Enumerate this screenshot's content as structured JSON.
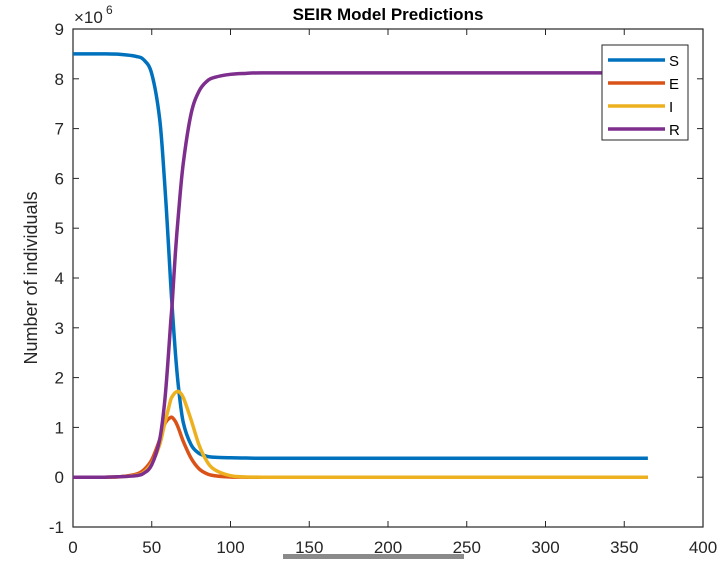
{
  "chart_data": {
    "type": "line",
    "title": "SEIR Model Predictions",
    "xlabel": "",
    "ylabel": "Number of individuals",
    "y_exponent_label": "×10^6",
    "y_multiplier": 1000000,
    "xlim": [
      0,
      400
    ],
    "ylim": [
      -1,
      9
    ],
    "xticks": [
      0,
      50,
      100,
      150,
      200,
      250,
      300,
      350,
      400
    ],
    "yticks": [
      -1,
      0,
      1,
      2,
      3,
      4,
      5,
      6,
      7,
      8,
      9
    ],
    "grid": false,
    "legend_position": "northeast",
    "x": [
      0,
      20,
      30,
      40,
      45,
      50,
      55,
      58,
      60,
      62,
      63,
      65,
      67,
      70,
      75,
      80,
      85,
      90,
      100,
      110,
      120,
      150,
      200,
      250,
      300,
      365
    ],
    "series": [
      {
        "name": "S",
        "color": "#0072BD",
        "values": [
          8.5,
          8.5,
          8.49,
          8.45,
          8.38,
          8.1,
          7.2,
          6.0,
          5.0,
          3.9,
          3.4,
          2.5,
          1.8,
          1.1,
          0.65,
          0.48,
          0.42,
          0.4,
          0.39,
          0.385,
          0.38,
          0.38,
          0.38,
          0.38,
          0.38,
          0.38
        ]
      },
      {
        "name": "E",
        "color": "#D95319",
        "values": [
          0,
          0.0,
          0.01,
          0.06,
          0.15,
          0.35,
          0.75,
          1.05,
          1.15,
          1.2,
          1.2,
          1.12,
          0.98,
          0.72,
          0.38,
          0.17,
          0.07,
          0.03,
          0.005,
          0,
          0,
          0,
          0,
          0,
          0,
          0
        ]
      },
      {
        "name": "I",
        "color": "#EDB120",
        "values": [
          0,
          0.0,
          0.01,
          0.04,
          0.1,
          0.28,
          0.65,
          1.05,
          1.3,
          1.55,
          1.62,
          1.7,
          1.72,
          1.6,
          1.15,
          0.65,
          0.32,
          0.15,
          0.03,
          0.005,
          0,
          0,
          0,
          0,
          0,
          0
        ]
      },
      {
        "name": "R",
        "color": "#7E2F8E",
        "values": [
          0,
          0.0,
          0.01,
          0.03,
          0.08,
          0.25,
          0.75,
          1.45,
          2.2,
          3.1,
          3.5,
          4.5,
          5.3,
          6.3,
          7.3,
          7.75,
          7.95,
          8.03,
          8.09,
          8.11,
          8.12,
          8.12,
          8.12,
          8.12,
          8.12,
          8.12
        ]
      }
    ]
  },
  "figure": {
    "title": "SEIR Model Predictions",
    "ylabel": "Number of individuals",
    "exponent": {
      "base": "×10",
      "power": "6"
    },
    "legend": [
      {
        "label": "S",
        "color": "#0072BD"
      },
      {
        "label": "E",
        "color": "#D95319"
      },
      {
        "label": "I",
        "color": "#EDB120"
      },
      {
        "label": "R",
        "color": "#7E2F8E"
      }
    ]
  }
}
